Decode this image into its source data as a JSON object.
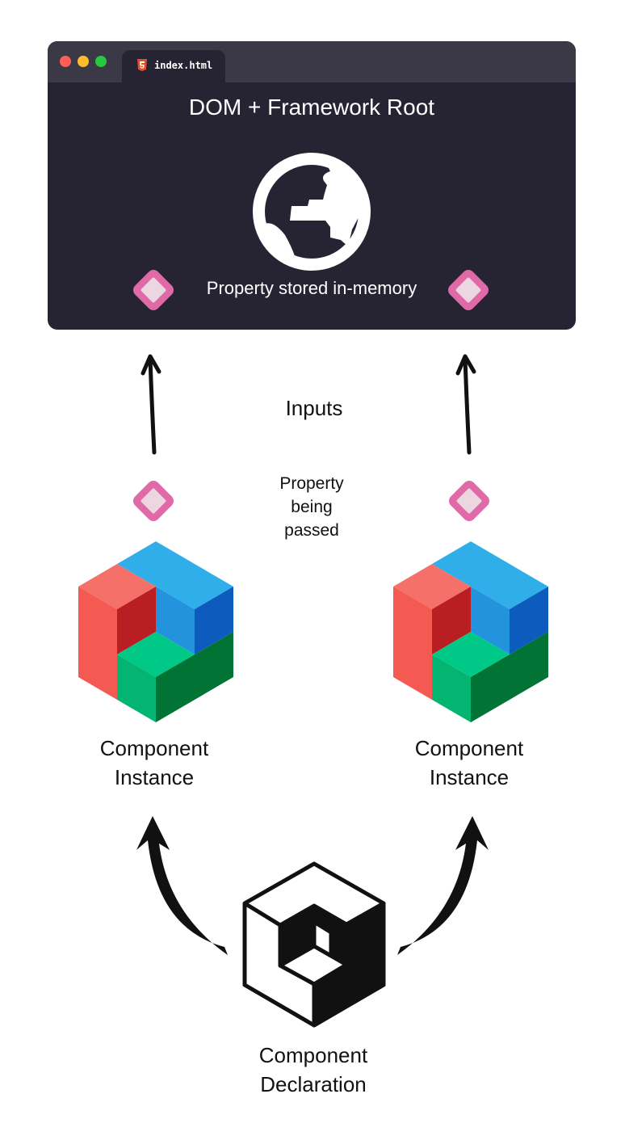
{
  "browser": {
    "tab_label": "index.html",
    "title": "DOM + Framework Root",
    "stored_label": "Property stored in-memory"
  },
  "diagram": {
    "inputs_label": "Inputs",
    "passed_label": [
      "Property",
      "being",
      "passed"
    ],
    "instance_left": [
      "Component",
      "Instance"
    ],
    "instance_right": [
      "Component",
      "Instance"
    ],
    "declaration": [
      "Component",
      "Declaration"
    ]
  },
  "icons": {
    "tab_icon": "html5-icon",
    "root_icon": "globe-icon",
    "property_icon": "pink-diamond-icon",
    "instance_icon": "colorful-cube-icon",
    "declaration_icon": "outline-cube-icon"
  },
  "colors": {
    "browser_bg": "#262433",
    "titlebar_bg": "#3b3946",
    "diamond_outer": "#e06aa8",
    "diamond_inner": "#ecd6e0",
    "cube_red": "#f55a52",
    "cube_blue": "#30aee9",
    "cube_green": "#00c987"
  }
}
